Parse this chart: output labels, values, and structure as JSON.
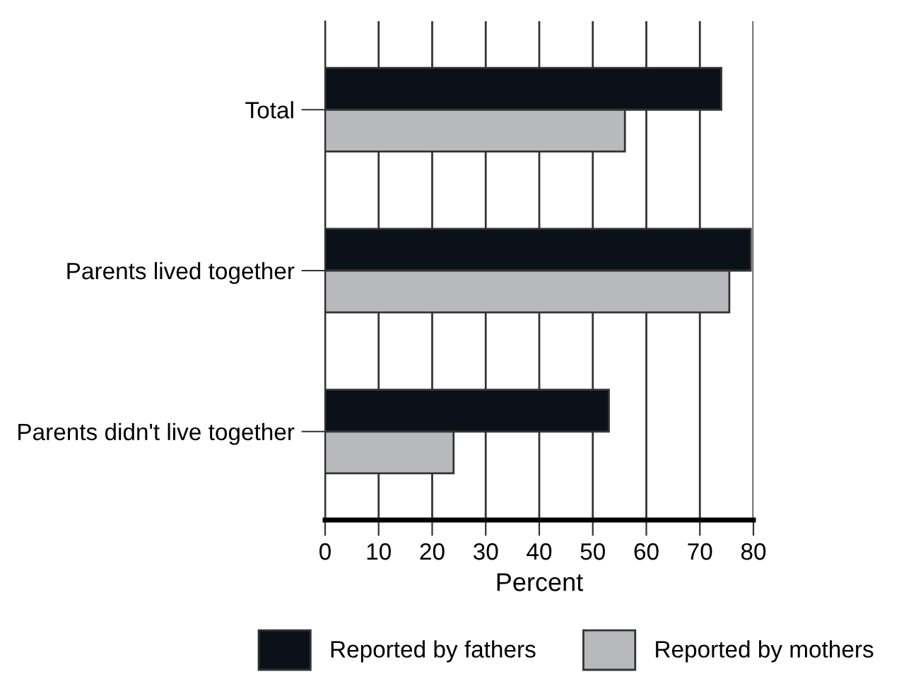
{
  "chart_data": {
    "type": "bar",
    "orientation": "horizontal",
    "categories": [
      "Total",
      "Parents lived together",
      "Parents didn't live together"
    ],
    "series": [
      {
        "name": "Reported by fathers",
        "color": "#0b1119",
        "values": [
          74,
          79.5,
          53
        ]
      },
      {
        "name": "Reported by mothers",
        "color": "#b8b9bc",
        "values": [
          56,
          75.5,
          24
        ]
      }
    ],
    "xlabel": "Percent",
    "xlim": [
      0,
      80
    ],
    "xticks": [
      0,
      10,
      20,
      30,
      40,
      50,
      60,
      70,
      80
    ],
    "grid": "x",
    "legend": "bottom"
  }
}
